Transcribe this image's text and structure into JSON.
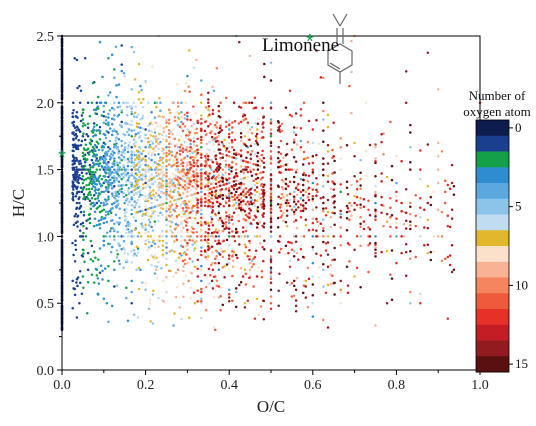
{
  "chart_data": {
    "type": "scatter",
    "xlabel": "O/C",
    "ylabel": "H/C",
    "xlim": [
      0.0,
      1.0
    ],
    "ylim": [
      0.0,
      2.5
    ],
    "x_ticks": [
      "0.0",
      "0.2",
      "0.4",
      "0.6",
      "0.8",
      "1.0"
    ],
    "y_ticks": [
      "0.0",
      "0.5",
      "1.0",
      "1.5",
      "2.0",
      "2.5"
    ],
    "grid": false,
    "colorbar": {
      "title_line1": "Number of",
      "title_line2": "oxygen atom",
      "range": [
        0,
        15
      ],
      "tick_labels": [
        "0",
        "5",
        "10",
        "15"
      ],
      "colors": [
        "#0d1d4d",
        "#1b3f8f",
        "#14a049",
        "#2f8dcf",
        "#5ba7de",
        "#8cc4e9",
        "#bfdcf1",
        "#e2b72c",
        "#fbe1c9",
        "#f9b394",
        "#f4855f",
        "#ef5a3b",
        "#e73128",
        "#c41d26",
        "#921b1f",
        "#5a0f10"
      ]
    },
    "annotation": {
      "text": "Limonene",
      "marker": "*",
      "x": 0.0,
      "y": 1.6
    }
  }
}
